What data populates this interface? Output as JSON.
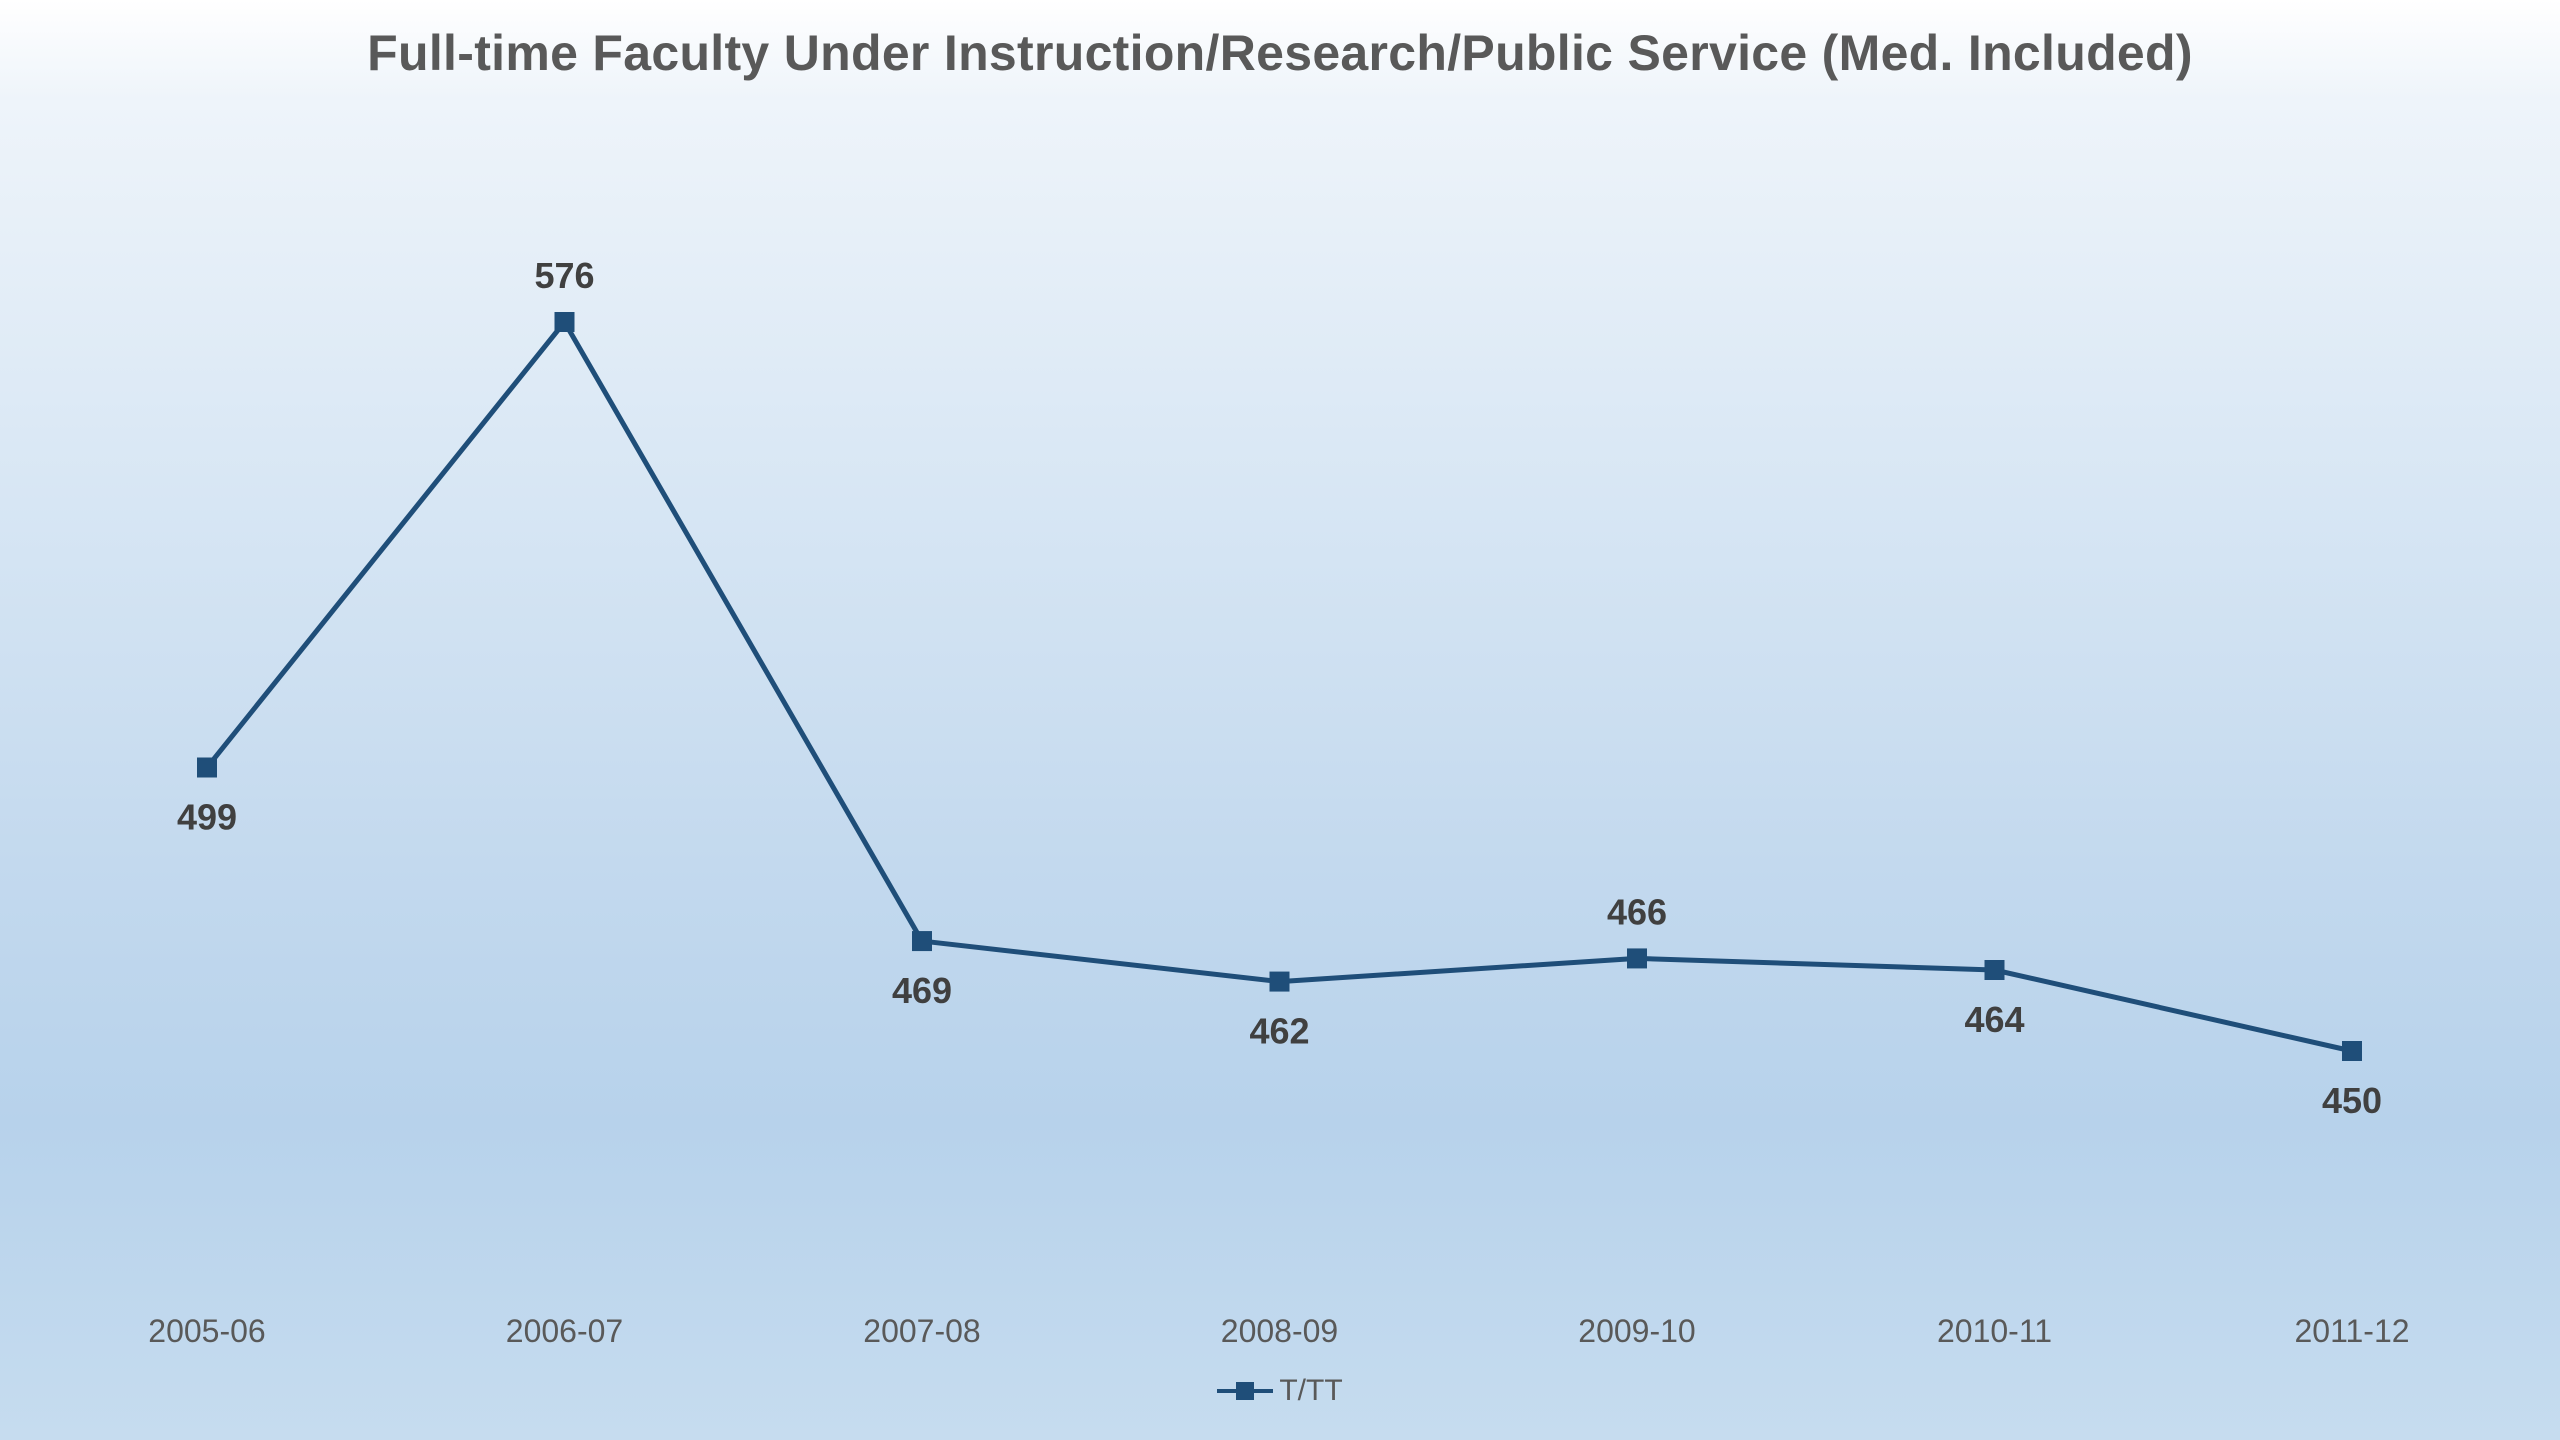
{
  "chart_data": {
    "type": "line",
    "title": "Full-time Faculty Under Instruction/Research/Public Service (Med. Included)",
    "categories": [
      "2005-06",
      "2006-07",
      "2007-08",
      "2008-09",
      "2009-10",
      "2010-11",
      "2011-12"
    ],
    "series": [
      {
        "name": "T/TT",
        "values": [
          499,
          576,
          469,
          462,
          466,
          464,
          450
        ],
        "color": "#1f4e79",
        "marker": "square"
      }
    ],
    "data_labels": true,
    "legend": "bottom",
    "grid": false,
    "y_axis_visible": false,
    "ylim": [
      390,
      620
    ],
    "xlabel": "",
    "ylabel": ""
  }
}
